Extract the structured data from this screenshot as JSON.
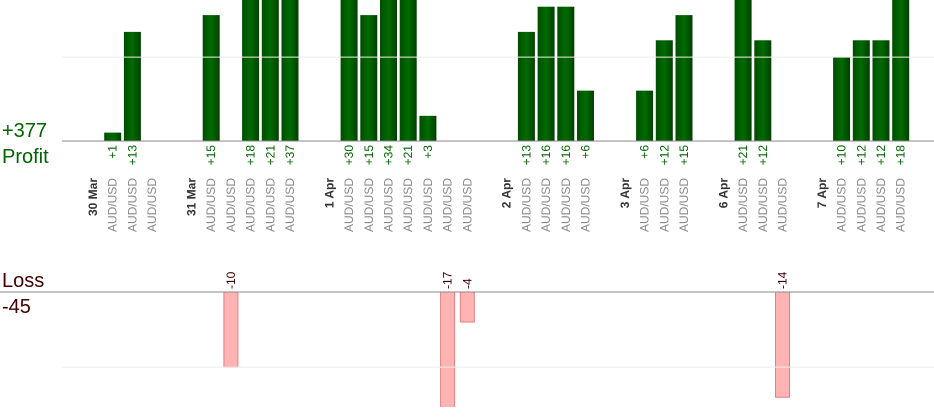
{
  "chart_data": {
    "type": "bar",
    "profit_total": {
      "value": 377,
      "label": "+377"
    },
    "profit_title": "Profit",
    "loss_title": "Loss",
    "loss_total": {
      "value": -45,
      "label": "-45"
    },
    "profit_color": "#006400",
    "loss_color": "#ffb3b3",
    "profit_ylim": [
      0,
      16.8
    ],
    "profit_yticks": [
      0,
      10
    ],
    "loss_ylim": [
      -15.3,
      0
    ],
    "loss_yticks": [
      -10,
      0
    ],
    "days": [
      {
        "date": "30 Mar",
        "trades": [
          {
            "symbol": "AUD/USD",
            "value": 1,
            "label": "+1"
          },
          {
            "symbol": "AUD/USD",
            "value": 13,
            "label": "+13"
          },
          {
            "symbol": "AUD/USD",
            "value": null,
            "label": null
          }
        ]
      },
      {
        "date": "31 Mar",
        "trades": [
          {
            "symbol": "AUD/USD",
            "value": 15,
            "label": "+15"
          },
          {
            "symbol": "AUD/USD",
            "value": -10,
            "label": "-10"
          },
          {
            "symbol": "AUD/USD",
            "value": 18,
            "label": "+18"
          },
          {
            "symbol": "AUD/USD",
            "value": 21,
            "label": "+21"
          },
          {
            "symbol": "AUD/USD",
            "value": 37,
            "label": "+37"
          }
        ]
      },
      {
        "date": "1 Apr",
        "trades": [
          {
            "symbol": "AUD/USD",
            "value": 30,
            "label": "+30"
          },
          {
            "symbol": "AUD/USD",
            "value": 15,
            "label": "+15"
          },
          {
            "symbol": "AUD/USD",
            "value": 34,
            "label": "+34"
          },
          {
            "symbol": "AUD/USD",
            "value": 21,
            "label": "+21"
          },
          {
            "symbol": "AUD/USD",
            "value": 3,
            "label": "+3"
          },
          {
            "symbol": "AUD/USD",
            "value": -17,
            "label": "-17"
          },
          {
            "symbol": "AUD/USD",
            "value": -4,
            "label": "-4"
          }
        ]
      },
      {
        "date": "2 Apr",
        "trades": [
          {
            "symbol": "AUD/USD",
            "value": 13,
            "label": "+13"
          },
          {
            "symbol": "AUD/USD",
            "value": 16,
            "label": "+16"
          },
          {
            "symbol": "AUD/USD",
            "value": 16,
            "label": "+16"
          },
          {
            "symbol": "AUD/USD",
            "value": 6,
            "label": "+6"
          }
        ]
      },
      {
        "date": "3 Apr",
        "trades": [
          {
            "symbol": "AUD/USD",
            "value": 6,
            "label": "+6"
          },
          {
            "symbol": "AUD/USD",
            "value": 12,
            "label": "+12"
          },
          {
            "symbol": "AUD/USD",
            "value": 15,
            "label": "+15"
          }
        ]
      },
      {
        "date": "6 Apr",
        "trades": [
          {
            "symbol": "AUD/USD",
            "value": 21,
            "label": "+21"
          },
          {
            "symbol": "AUD/USD",
            "value": 12,
            "label": "+12"
          },
          {
            "symbol": "AUD/USD",
            "value": -14,
            "label": "-14"
          }
        ]
      },
      {
        "date": "7 Apr",
        "trades": [
          {
            "symbol": "AUD/USD",
            "value": 10,
            "label": "+10"
          },
          {
            "symbol": "AUD/USD",
            "value": 12,
            "label": "+12"
          },
          {
            "symbol": "AUD/USD",
            "value": 12,
            "label": "+12"
          },
          {
            "symbol": "AUD/USD",
            "value": 18,
            "label": "+18"
          }
        ]
      }
    ]
  }
}
